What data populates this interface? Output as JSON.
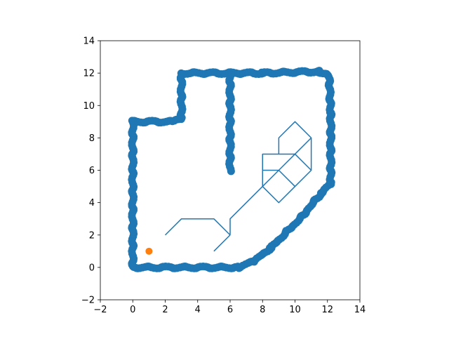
{
  "chart_data": {
    "type": "scatter",
    "title": "",
    "xlabel": "",
    "ylabel": "",
    "xlim": [
      -2,
      14
    ],
    "ylim": [
      -2,
      14
    ],
    "grid": false,
    "legend": "none",
    "x_ticks": [
      "−2",
      "0",
      "2",
      "4",
      "6",
      "8",
      "10",
      "12",
      "14"
    ],
    "y_ticks": [
      "−2",
      "0",
      "2",
      "4",
      "6",
      "8",
      "10",
      "12",
      "14"
    ],
    "x_tick_values": [
      -2,
      0,
      2,
      4,
      6,
      8,
      10,
      12,
      14
    ],
    "y_tick_values": [
      -2,
      0,
      2,
      4,
      6,
      8,
      10,
      12,
      14
    ],
    "colors": {
      "obstacles": "#1f77b4",
      "start": "#ff7f0e",
      "path": "#1f77b4"
    },
    "obstacle_outline": [
      [
        0,
        0
      ],
      [
        6.5,
        0
      ],
      [
        7.5,
        0.4
      ],
      [
        8.5,
        1.2
      ],
      [
        9.5,
        2.2
      ],
      [
        10.5,
        3.2
      ],
      [
        11.6,
        4.6
      ],
      [
        12.2,
        5.2
      ],
      [
        12.2,
        9.6
      ],
      [
        12.1,
        11.8
      ],
      [
        11.5,
        12.1
      ],
      [
        8,
        12
      ],
      [
        3,
        12
      ],
      [
        3,
        9.2
      ],
      [
        2.5,
        9
      ],
      [
        0,
        9
      ],
      [
        0,
        0
      ]
    ],
    "obstacle_inner_wall": [
      [
        6,
        12
      ],
      [
        6,
        6
      ]
    ],
    "start_point": [
      1,
      1
    ],
    "path_segments": [
      [
        [
          2,
          2
        ],
        [
          3,
          3
        ],
        [
          5,
          3
        ],
        [
          6,
          2
        ]
      ],
      [
        [
          5,
          1
        ],
        [
          6,
          2
        ]
      ],
      [
        [
          6,
          2
        ],
        [
          6,
          3
        ],
        [
          8,
          5
        ]
      ],
      [
        [
          8,
          5
        ],
        [
          8,
          7
        ],
        [
          9,
          7
        ]
      ],
      [
        [
          8,
          6
        ],
        [
          9,
          6
        ]
      ],
      [
        [
          9,
          6
        ],
        [
          8,
          5
        ],
        [
          9,
          4
        ],
        [
          10,
          5
        ],
        [
          9,
          6
        ],
        [
          10,
          7
        ],
        [
          11,
          6
        ],
        [
          10,
          5
        ]
      ],
      [
        [
          9,
          7
        ],
        [
          9,
          8
        ],
        [
          10,
          9
        ],
        [
          11,
          8
        ],
        [
          11,
          6
        ]
      ],
      [
        [
          9,
          7
        ],
        [
          10,
          7
        ],
        [
          11,
          8
        ]
      ]
    ]
  }
}
